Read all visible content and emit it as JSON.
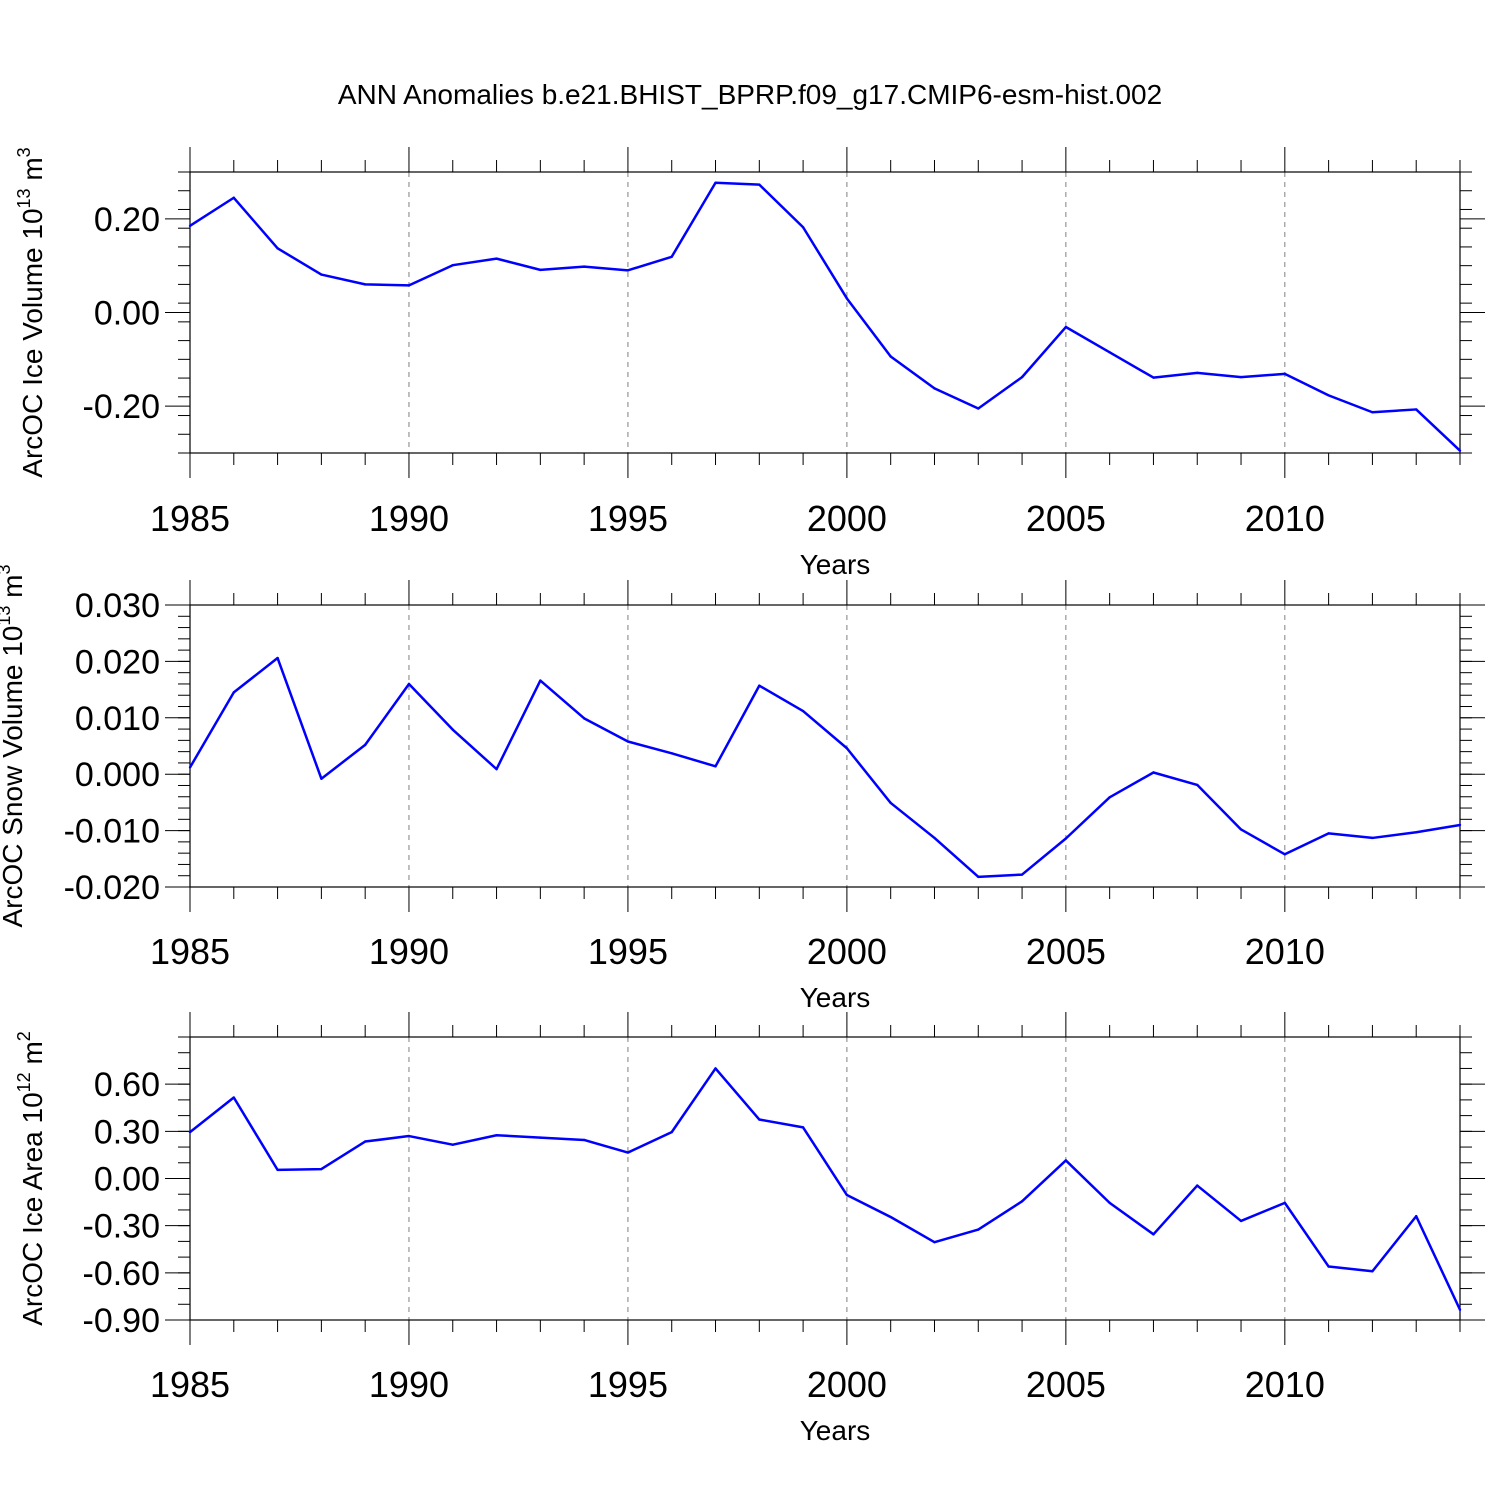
{
  "figure": {
    "title": "ANN Anomalies b.e21.BHIST_BPRP.f09_g17.CMIP6-esm-hist.002"
  },
  "colors": {
    "line": "#0000ff",
    "axis": "#000000",
    "grid": "#808080"
  },
  "chart_data": [
    {
      "type": "line",
      "title": "",
      "xlabel": "Years",
      "ylabel": "ArcOC Ice Volume 10",
      "ylabel_sup": "13",
      "ylabel_unit": "m",
      "ylabel_unit_sup": "3",
      "xlim": [
        1985,
        2014
      ],
      "ylim": [
        -0.3,
        0.3
      ],
      "x_ticks": [
        1985,
        1990,
        1995,
        2000,
        2005,
        2010
      ],
      "x_tick_labels": [
        "1985",
        "1990",
        "1995",
        "2000",
        "2005",
        "2010"
      ],
      "y_ticks": [
        -0.2,
        0.0,
        0.2
      ],
      "y_tick_labels": [
        "-0.20",
        "0.00",
        "0.20"
      ],
      "y_minor_step": 0.04,
      "grid": "vertical dashed at major x ticks",
      "x": [
        1985,
        1986,
        1987,
        1988,
        1989,
        1990,
        1991,
        1992,
        1993,
        1994,
        1995,
        1996,
        1997,
        1998,
        1999,
        2000,
        2001,
        2002,
        2003,
        2004,
        2005,
        2006,
        2007,
        2008,
        2009,
        2010,
        2011,
        2012,
        2013,
        2014
      ],
      "series": [
        {
          "values": [
            0.185,
            0.245,
            0.137,
            0.081,
            0.06,
            0.058,
            0.101,
            0.115,
            0.091,
            0.098,
            0.09,
            0.119,
            0.277,
            0.273,
            0.182,
            0.03,
            -0.094,
            -0.162,
            -0.205,
            -0.138,
            -0.031,
            -0.085,
            -0.139,
            -0.129,
            -0.138,
            -0.131,
            -0.177,
            -0.213,
            -0.207,
            -0.295
          ]
        }
      ]
    },
    {
      "type": "line",
      "title": "",
      "xlabel": "Years",
      "ylabel": "ArcOC Snow Volume 10",
      "ylabel_sup": "13",
      "ylabel_unit": "m",
      "ylabel_unit_sup": "3",
      "xlim": [
        1985,
        2014
      ],
      "ylim": [
        -0.02,
        0.03
      ],
      "x_ticks": [
        1985,
        1990,
        1995,
        2000,
        2005,
        2010
      ],
      "x_tick_labels": [
        "1985",
        "1990",
        "1995",
        "2000",
        "2005",
        "2010"
      ],
      "y_ticks": [
        -0.02,
        -0.01,
        0.0,
        0.01,
        0.02,
        0.03
      ],
      "y_tick_labels": [
        "-0.020",
        "-0.010",
        "0.000",
        "0.010",
        "0.020",
        "0.030"
      ],
      "y_minor_step": 0.002,
      "grid": "vertical dashed at major x ticks",
      "x": [
        1985,
        1986,
        1987,
        1988,
        1989,
        1990,
        1991,
        1992,
        1993,
        1994,
        1995,
        1996,
        1997,
        1998,
        1999,
        2000,
        2001,
        2002,
        2003,
        2004,
        2005,
        2006,
        2007,
        2008,
        2009,
        2010,
        2011,
        2012,
        2013,
        2014
      ],
      "series": [
        {
          "values": [
            0.0012,
            0.0145,
            0.0206,
            -0.0008,
            0.0052,
            0.016,
            0.0079,
            0.0009,
            0.0166,
            0.0099,
            0.0058,
            0.0037,
            0.0014,
            0.0157,
            0.0112,
            0.0046,
            -0.0051,
            -0.0113,
            -0.0182,
            -0.0178,
            -0.0114,
            -0.0041,
            0.0003,
            -0.0019,
            -0.0098,
            -0.0142,
            -0.0105,
            -0.0113,
            -0.0103,
            -0.009
          ]
        }
      ]
    },
    {
      "type": "line",
      "title": "",
      "xlabel": "Years",
      "ylabel": "ArcOC Ice Area 10",
      "ylabel_sup": "12",
      "ylabel_unit": "m",
      "ylabel_unit_sup": "2",
      "xlim": [
        1985,
        2014
      ],
      "ylim": [
        -0.9,
        0.9
      ],
      "x_ticks": [
        1985,
        1990,
        1995,
        2000,
        2005,
        2010
      ],
      "x_tick_labels": [
        "1985",
        "1990",
        "1995",
        "2000",
        "2005",
        "2010"
      ],
      "y_ticks": [
        -0.9,
        -0.6,
        -0.3,
        0.0,
        0.3,
        0.6
      ],
      "y_tick_labels": [
        "-0.90",
        "-0.60",
        "-0.30",
        "0.00",
        "0.30",
        "0.60"
      ],
      "y_minor_step": 0.1,
      "grid": "vertical dashed at major x ticks",
      "x": [
        1985,
        1986,
        1987,
        1988,
        1989,
        1990,
        1991,
        1992,
        1993,
        1994,
        1995,
        1996,
        1997,
        1998,
        1999,
        2000,
        2001,
        2002,
        2003,
        2004,
        2005,
        2006,
        2007,
        2008,
        2009,
        2010,
        2011,
        2012,
        2013,
        2014
      ],
      "series": [
        {
          "values": [
            0.295,
            0.515,
            0.055,
            0.06,
            0.235,
            0.27,
            0.215,
            0.275,
            0.26,
            0.245,
            0.165,
            0.295,
            0.7,
            0.375,
            0.325,
            -0.105,
            -0.245,
            -0.405,
            -0.325,
            -0.145,
            0.115,
            -0.155,
            -0.355,
            -0.045,
            -0.27,
            -0.155,
            -0.56,
            -0.59,
            -0.24,
            -0.835
          ]
        }
      ]
    }
  ]
}
